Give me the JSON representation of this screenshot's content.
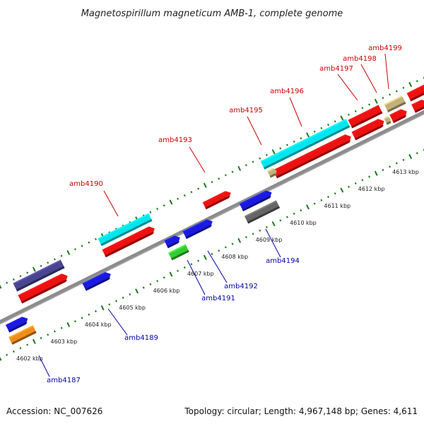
{
  "header": {
    "title": "Magnetospirillum magneticum AMB-1, complete genome"
  },
  "footer": {
    "accession": "Accession: NC_007626",
    "topology": "Topology: circular; Length: 4,967,148 bp; Genes: 4,611"
  },
  "colors": {
    "top_label": "#cc0000",
    "bottom_label": "#0000aa",
    "backbone": "#8c8c8c",
    "tick": "#1a7a1a"
  },
  "scale_labels": [
    "4602 kbp",
    "4603 kbp",
    "4604 kbp",
    "4605 kbp",
    "4606 kbp",
    "4607 kbp",
    "4608 kbp",
    "4609 kbp",
    "4610 kbp",
    "4611 kbp",
    "4612 kbp",
    "4613 kbp"
  ],
  "top_gene_labels": [
    "amb4190",
    "amb4193",
    "amb4195",
    "amb4196",
    "amb4197",
    "amb4198",
    "amb4199"
  ],
  "bottom_gene_labels": [
    "amb4187",
    "amb4189",
    "amb4191",
    "amb4192",
    "amb4194"
  ],
  "genes": [
    {
      "color": "#4a4590"
    },
    {
      "color": "#ee1111"
    },
    {
      "color": "#1a1ae0"
    },
    {
      "color": "#f08c1a"
    },
    {
      "color": "#00e6ee"
    },
    {
      "color": "#ee1111"
    },
    {
      "color": "#1a1ae0"
    },
    {
      "color": "#1a1ae0"
    },
    {
      "color": "#1a1ae0"
    },
    {
      "color": "#33cc33"
    },
    {
      "color": "#ee1111"
    },
    {
      "color": "#1a1ae0"
    },
    {
      "color": "#666666"
    },
    {
      "color": "#00e6ee"
    },
    {
      "color": "#ee1111"
    },
    {
      "color": "#c2b27a"
    },
    {
      "color": "#ee1111"
    },
    {
      "color": "#ee1111"
    },
    {
      "color": "#c2b27a"
    },
    {
      "color": "#ee1111"
    },
    {
      "color": "#c2b27a"
    },
    {
      "color": "#ee1111"
    }
  ]
}
